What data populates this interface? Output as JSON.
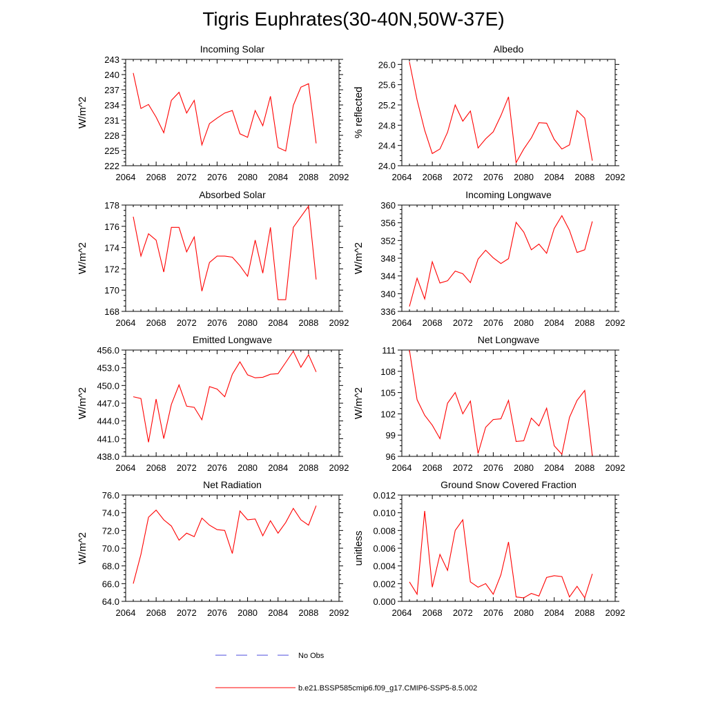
{
  "page": {
    "title": "Tigris Euphrates(30-40N,50W-37E)"
  },
  "legend": {
    "items": [
      {
        "label": "No Obs",
        "color": "#4b4bdc",
        "style": "dashed"
      },
      {
        "label": "b.e21.BSSP585cmip6.f09_g17.CMIP6-SSP5-8.5.002",
        "color": "#ff0000",
        "style": "solid"
      }
    ]
  },
  "chart_data": [
    {
      "type": "line",
      "title": "Incoming Solar",
      "xlabel": "",
      "ylabel": "W/m^2",
      "xlim": [
        2064,
        2092
      ],
      "ylim": [
        222,
        243
      ],
      "xticks": [
        "2064",
        "2068",
        "2072",
        "2076",
        "2080",
        "2084",
        "2088",
        "2092"
      ],
      "yticks": [
        "222",
        "225",
        "228",
        "231",
        "234",
        "237",
        "240",
        "243"
      ],
      "x": [
        2065,
        2066,
        2067,
        2068,
        2069,
        2070,
        2071,
        2072,
        2073,
        2074,
        2075,
        2076,
        2077,
        2078,
        2079,
        2080,
        2081,
        2082,
        2083,
        2084,
        2085,
        2086,
        2087,
        2088,
        2089
      ],
      "series": [
        {
          "color": "#ff0000",
          "values": [
            240.3,
            233.3,
            234.1,
            231.6,
            228.5,
            234.9,
            236.5,
            232.4,
            234.9,
            226.1,
            230.3,
            231.4,
            232.4,
            232.9,
            228.3,
            227.6,
            232.9,
            229.9,
            235.7,
            225.6,
            224.9,
            233.9,
            237.5,
            238.2,
            226.4
          ]
        }
      ]
    },
    {
      "type": "line",
      "title": "Albedo",
      "xlabel": "",
      "ylabel": "% reflected",
      "xlim": [
        2064,
        2092
      ],
      "ylim": [
        24.0,
        26.1
      ],
      "xticks": [
        "2064",
        "2068",
        "2072",
        "2076",
        "2080",
        "2084",
        "2088",
        "2092"
      ],
      "yticks": [
        "24.0",
        "24.4",
        "24.8",
        "25.2",
        "25.6",
        "26.0"
      ],
      "x": [
        2065,
        2066,
        2067,
        2068,
        2069,
        2070,
        2071,
        2072,
        2073,
        2074,
        2075,
        2076,
        2077,
        2078,
        2079,
        2080,
        2081,
        2082,
        2083,
        2084,
        2085,
        2086,
        2087,
        2088,
        2089
      ],
      "series": [
        {
          "color": "#ff0000",
          "values": [
            26.05,
            25.3,
            24.7,
            24.24,
            24.33,
            24.66,
            25.2,
            24.88,
            25.08,
            24.35,
            24.53,
            24.67,
            24.99,
            25.36,
            24.06,
            24.33,
            24.55,
            24.85,
            24.84,
            24.52,
            24.33,
            24.41,
            25.09,
            24.94,
            24.1
          ]
        }
      ]
    },
    {
      "type": "line",
      "title": "Absorbed Solar",
      "xlabel": "",
      "ylabel": "W/m^2",
      "xlim": [
        2064,
        2092
      ],
      "ylim": [
        168,
        178
      ],
      "xticks": [
        "2064",
        "2068",
        "2072",
        "2076",
        "2080",
        "2084",
        "2088",
        "2092"
      ],
      "yticks": [
        "168",
        "170",
        "172",
        "174",
        "176",
        "178"
      ],
      "x": [
        2065,
        2066,
        2067,
        2068,
        2069,
        2070,
        2071,
        2072,
        2073,
        2074,
        2075,
        2076,
        2077,
        2078,
        2079,
        2080,
        2081,
        2082,
        2083,
        2084,
        2085,
        2086,
        2087,
        2088,
        2089
      ],
      "series": [
        {
          "color": "#ff0000",
          "values": [
            176.9,
            173.2,
            175.3,
            174.7,
            171.7,
            175.9,
            175.9,
            173.6,
            175.0,
            169.9,
            172.6,
            173.2,
            173.2,
            173.1,
            172.3,
            171.3,
            174.7,
            171.6,
            175.9,
            169.1,
            169.1,
            175.9,
            176.9,
            177.9,
            171.0
          ]
        }
      ]
    },
    {
      "type": "line",
      "title": "Incoming Longwave",
      "xlabel": "",
      "ylabel": "W/m^2",
      "xlim": [
        2064,
        2092
      ],
      "ylim": [
        336,
        360
      ],
      "xticks": [
        "2064",
        "2068",
        "2072",
        "2076",
        "2080",
        "2084",
        "2088",
        "2092"
      ],
      "yticks": [
        "336",
        "340",
        "344",
        "348",
        "352",
        "356",
        "360"
      ],
      "x": [
        2065,
        2066,
        2067,
        2068,
        2069,
        2070,
        2071,
        2072,
        2073,
        2074,
        2075,
        2076,
        2077,
        2078,
        2079,
        2080,
        2081,
        2082,
        2083,
        2084,
        2085,
        2086,
        2087,
        2088,
        2089
      ],
      "series": [
        {
          "color": "#ff0000",
          "values": [
            337.1,
            343.5,
            338.8,
            347.2,
            342.4,
            342.9,
            345.1,
            344.5,
            342.5,
            347.8,
            349.8,
            348.1,
            346.8,
            347.9,
            356.1,
            353.9,
            349.9,
            351.2,
            349.1,
            354.7,
            357.6,
            354.3,
            349.3,
            349.9,
            356.3
          ]
        }
      ]
    },
    {
      "type": "line",
      "title": "Emitted Longwave",
      "xlabel": "",
      "ylabel": "W/m^2",
      "xlim": [
        2064,
        2092
      ],
      "ylim": [
        438,
        456
      ],
      "xticks": [
        "2064",
        "2068",
        "2072",
        "2076",
        "2080",
        "2084",
        "2088",
        "2092"
      ],
      "yticks": [
        "438.0",
        "441.0",
        "444.0",
        "447.0",
        "450.0",
        "453.0",
        "456.0"
      ],
      "x": [
        2065,
        2066,
        2067,
        2068,
        2069,
        2070,
        2071,
        2072,
        2073,
        2074,
        2075,
        2076,
        2077,
        2078,
        2079,
        2080,
        2081,
        2082,
        2083,
        2084,
        2085,
        2086,
        2087,
        2088,
        2089
      ],
      "series": [
        {
          "color": "#ff0000",
          "values": [
            448.1,
            447.8,
            440.4,
            447.7,
            441.0,
            446.8,
            450.1,
            446.5,
            446.3,
            444.2,
            449.8,
            449.4,
            448.1,
            451.9,
            454.0,
            451.8,
            451.3,
            451.4,
            451.9,
            452.0,
            453.9,
            455.8,
            453.1,
            455.2,
            452.3
          ]
        }
      ]
    },
    {
      "type": "line",
      "title": "Net Longwave",
      "xlabel": "",
      "ylabel": "W/m^2",
      "xlim": [
        2064,
        2092
      ],
      "ylim": [
        96,
        111
      ],
      "xticks": [
        "2064",
        "2068",
        "2072",
        "2076",
        "2080",
        "2084",
        "2088",
        "2092"
      ],
      "yticks": [
        "96",
        "99",
        "102",
        "105",
        "108",
        "111"
      ],
      "x": [
        2065,
        2066,
        2067,
        2068,
        2069,
        2070,
        2071,
        2072,
        2073,
        2074,
        2075,
        2076,
        2077,
        2078,
        2079,
        2080,
        2081,
        2082,
        2083,
        2084,
        2085,
        2086,
        2087,
        2088,
        2089
      ],
      "series": [
        {
          "color": "#ff0000",
          "values": [
            111.0,
            104.0,
            101.8,
            100.4,
            98.5,
            103.5,
            105.0,
            102.0,
            103.8,
            96.4,
            100.1,
            101.2,
            101.3,
            103.9,
            98.1,
            98.2,
            101.4,
            100.3,
            102.8,
            97.5,
            96.3,
            101.5,
            103.9,
            105.3,
            96.1
          ]
        }
      ]
    },
    {
      "type": "line",
      "title": "Net Radiation",
      "xlabel": "",
      "ylabel": "W/m^2",
      "xlim": [
        2064,
        2092
      ],
      "ylim": [
        64,
        76
      ],
      "xticks": [
        "2064",
        "2068",
        "2072",
        "2076",
        "2080",
        "2084",
        "2088",
        "2092"
      ],
      "yticks": [
        "64.0",
        "66.0",
        "68.0",
        "70.0",
        "72.0",
        "74.0",
        "76.0"
      ],
      "x": [
        2065,
        2066,
        2067,
        2068,
        2069,
        2070,
        2071,
        2072,
        2073,
        2074,
        2075,
        2076,
        2077,
        2078,
        2079,
        2080,
        2081,
        2082,
        2083,
        2084,
        2085,
        2086,
        2087,
        2088,
        2089
      ],
      "series": [
        {
          "color": "#ff0000",
          "values": [
            66.0,
            69.3,
            73.5,
            74.3,
            73.2,
            72.5,
            70.9,
            71.7,
            71.3,
            73.4,
            72.6,
            72.1,
            72.0,
            69.4,
            74.2,
            73.2,
            73.3,
            71.4,
            73.1,
            71.7,
            72.9,
            74.5,
            73.2,
            72.6,
            74.8
          ]
        }
      ]
    },
    {
      "type": "line",
      "title": "Ground Snow Covered Fraction",
      "xlabel": "",
      "ylabel": "unitless",
      "xlim": [
        2064,
        2092
      ],
      "ylim": [
        0,
        0.012
      ],
      "xticks": [
        "2064",
        "2068",
        "2072",
        "2076",
        "2080",
        "2084",
        "2088",
        "2092"
      ],
      "yticks": [
        "0.000",
        "0.002",
        "0.004",
        "0.006",
        "0.008",
        "0.010",
        "0.012"
      ],
      "x": [
        2065,
        2066,
        2067,
        2068,
        2069,
        2070,
        2071,
        2072,
        2073,
        2074,
        2075,
        2076,
        2077,
        2078,
        2079,
        2080,
        2081,
        2082,
        2083,
        2084,
        2085,
        2086,
        2087,
        2088,
        2089
      ],
      "series": [
        {
          "color": "#ff0000",
          "values": [
            0.0022,
            0.0008,
            0.0102,
            0.0016,
            0.0053,
            0.0035,
            0.008,
            0.0092,
            0.0022,
            0.0016,
            0.002,
            0.0008,
            0.003,
            0.0067,
            0.0005,
            0.0004,
            0.0009,
            0.0006,
            0.0027,
            0.0029,
            0.0028,
            0.0005,
            0.0017,
            0.0004,
            0.0031
          ]
        }
      ]
    }
  ]
}
